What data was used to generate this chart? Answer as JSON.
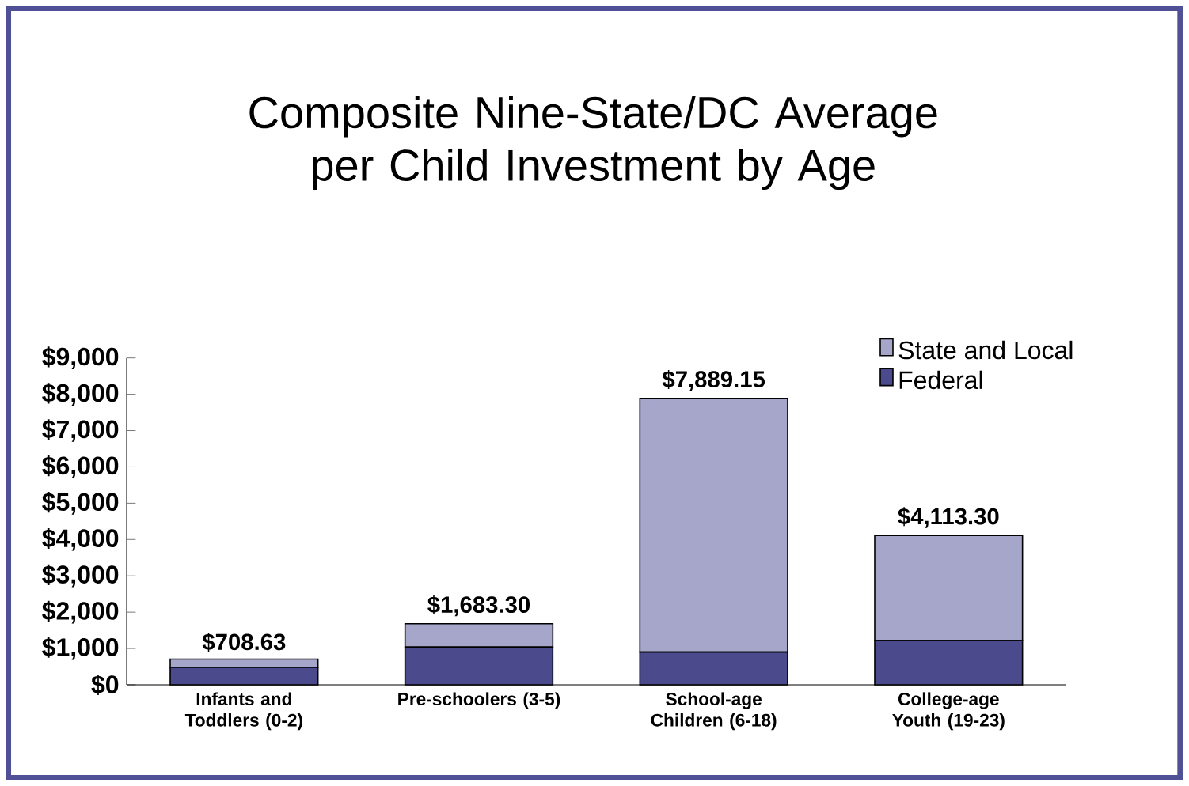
{
  "chart_data": {
    "type": "bar",
    "title": "Composite Nine-State/DC Average per Child Investment by Age",
    "categories": [
      "Infants and Toddlers (0-2)",
      "Pre-schoolers (3-5)",
      "School-age Children (6-18)",
      "College-age Youth (19-23)"
    ],
    "stacked": true,
    "series": [
      {
        "name": "Federal",
        "color": "#4a4a8c",
        "values": [
          480,
          1040,
          900,
          1220
        ]
      },
      {
        "name": "State and Local",
        "color": "#a6a6ca",
        "values": [
          228.63,
          643.3,
          6989.15,
          2893.3
        ]
      }
    ],
    "totals": [
      "$708.63",
      "$1,683.30",
      "$7,889.15",
      "$4,113.30"
    ],
    "ylim": [
      0,
      9000
    ],
    "yticks": [
      {
        "value": 0,
        "label": "$0"
      },
      {
        "value": 1000,
        "label": "$1,000"
      },
      {
        "value": 2000,
        "label": "$2,000"
      },
      {
        "value": 3000,
        "label": "$3,000"
      },
      {
        "value": 4000,
        "label": "$4,000"
      },
      {
        "value": 5000,
        "label": "$5,000"
      },
      {
        "value": 6000,
        "label": "$6,000"
      },
      {
        "value": 7000,
        "label": "$7,000"
      },
      {
        "value": 8000,
        "label": "$8,000"
      },
      {
        "value": 9000,
        "label": "$9,000"
      }
    ],
    "grid": false,
    "legend": "top right"
  }
}
